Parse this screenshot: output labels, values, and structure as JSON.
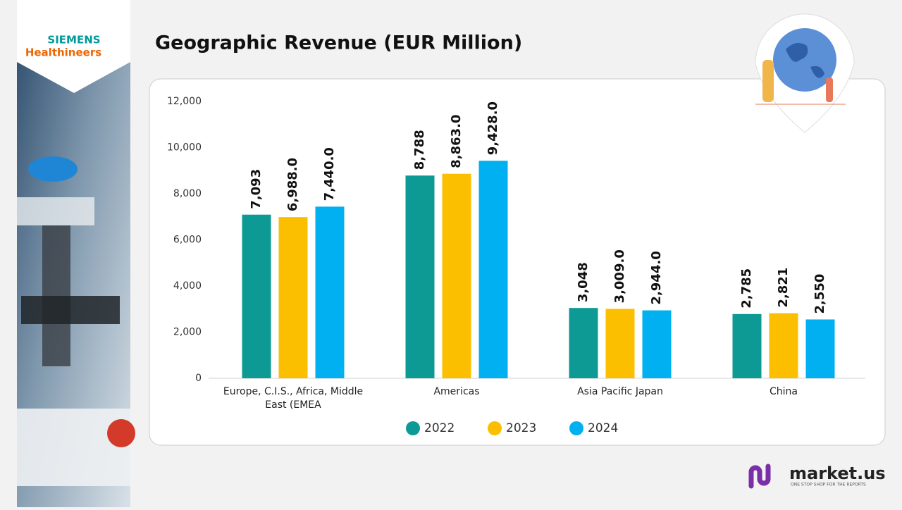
{
  "branding": {
    "logo_top": "SIEMENS",
    "logo_bottom": "Healthineers",
    "footer_brand": "market.us",
    "footer_tagline": "ONE STOP SHOP FOR THE REPORTS"
  },
  "chart_data": {
    "type": "bar",
    "title": "Geographic Revenue (EUR Million)",
    "categories": [
      "Europe, C.I.S., Africa, Middle East (EMEA",
      "Americas",
      "Asia Pacific Japan",
      "China"
    ],
    "series": [
      {
        "name": "2022",
        "color": "#0e9a94",
        "values": [
          7093,
          8788,
          3048,
          2785
        ],
        "value_labels": [
          "7,093",
          "8,788",
          "3,048",
          "2,785"
        ]
      },
      {
        "name": "2023",
        "color": "#fcbf00",
        "values": [
          6988,
          8863,
          3009,
          2821
        ],
        "value_labels": [
          "6,988.0",
          "8,863.0",
          "3,009.0",
          "2,821"
        ]
      },
      {
        "name": "2024",
        "color": "#00b0f0",
        "values": [
          7440,
          9428,
          2944,
          2550
        ],
        "value_labels": [
          "7,440.0",
          "9,428.0",
          "2,944.0",
          "2,550"
        ]
      }
    ],
    "ylim": [
      0,
      12000
    ],
    "yticks": [
      0,
      {
        "value": 2000,
        "label": "2,000"
      },
      {
        "value": 4000,
        "label": "4,000"
      },
      {
        "value": 6000,
        "label": "6,000"
      },
      {
        "value": 8000,
        "label": "8,000"
      },
      {
        "value": 10000,
        "label": "10,000"
      },
      {
        "value": 12000,
        "label": "12,000"
      }
    ],
    "grid": false,
    "legend": "bottom"
  }
}
